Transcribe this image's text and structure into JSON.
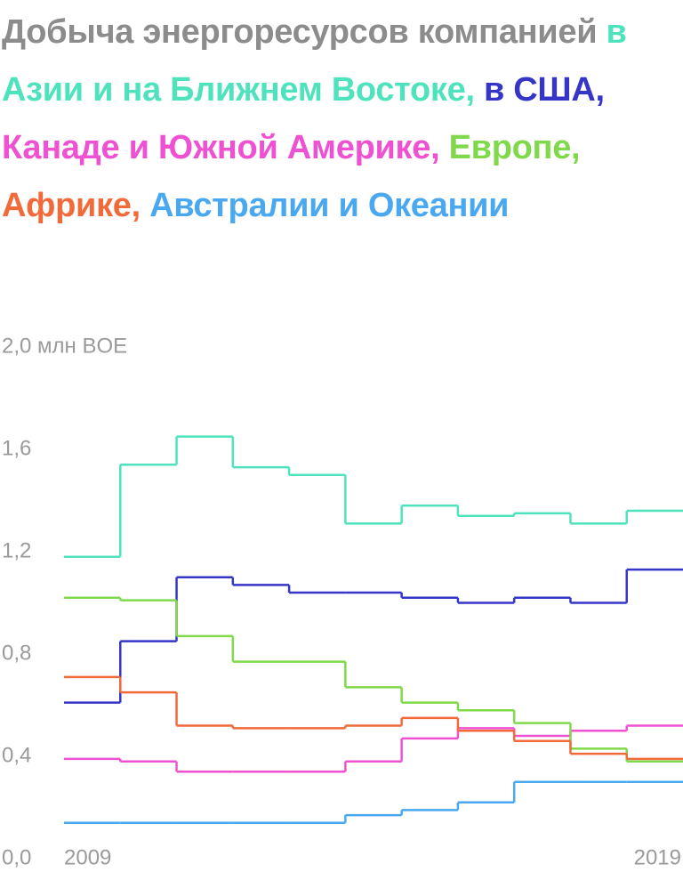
{
  "chart_data": {
    "type": "step",
    "title": "Добыча энергоресурсов компанией",
    "categories": [
      "2009",
      null,
      null,
      null,
      null,
      null,
      null,
      null,
      null,
      null,
      "2019"
    ],
    "ylim": [
      0,
      2.0
    ],
    "yticks": [
      {
        "value": 0,
        "label": "0,0"
      },
      {
        "value": 0.4,
        "label": "0,4"
      },
      {
        "value": 0.8,
        "label": "0,8"
      },
      {
        "value": 1.2,
        "label": "1,2"
      },
      {
        "value": 1.6,
        "label": "1,6"
      },
      {
        "value": 2.0,
        "label": "2,0 млн BOE"
      }
    ],
    "grid": false,
    "series": [
      {
        "name": "в Азии и на Ближнем Востоке,",
        "color": "#4fe3bd",
        "values": [
          1.18,
          1.54,
          1.65,
          1.53,
          1.5,
          1.31,
          1.38,
          1.34,
          1.35,
          1.31,
          1.36
        ]
      },
      {
        "name": "в США,",
        "color": "#3535c8",
        "values": [
          0.61,
          0.85,
          1.1,
          1.07,
          1.04,
          1.04,
          1.02,
          1.0,
          1.02,
          1.0,
          1.13
        ]
      },
      {
        "name": "Канаде и Южной Америке,",
        "color": "#ee52d2",
        "values": [
          0.39,
          0.38,
          0.34,
          0.34,
          0.34,
          0.38,
          0.47,
          0.51,
          0.48,
          0.5,
          0.52
        ]
      },
      {
        "name": "Европе,",
        "color": "#7fd94a",
        "values": [
          1.02,
          1.01,
          0.87,
          0.77,
          0.77,
          0.67,
          0.61,
          0.58,
          0.53,
          0.43,
          0.38
        ]
      },
      {
        "name": "Африке,",
        "color": "#f26a3a",
        "values": [
          0.71,
          0.65,
          0.52,
          0.51,
          0.51,
          0.52,
          0.55,
          0.5,
          0.46,
          0.41,
          0.39
        ]
      },
      {
        "name": "Австралии и Океании",
        "color": "#4aa8f0",
        "values": [
          0.14,
          0.14,
          0.14,
          0.14,
          0.14,
          0.17,
          0.19,
          0.22,
          0.3,
          0.3,
          0.3
        ]
      }
    ]
  }
}
